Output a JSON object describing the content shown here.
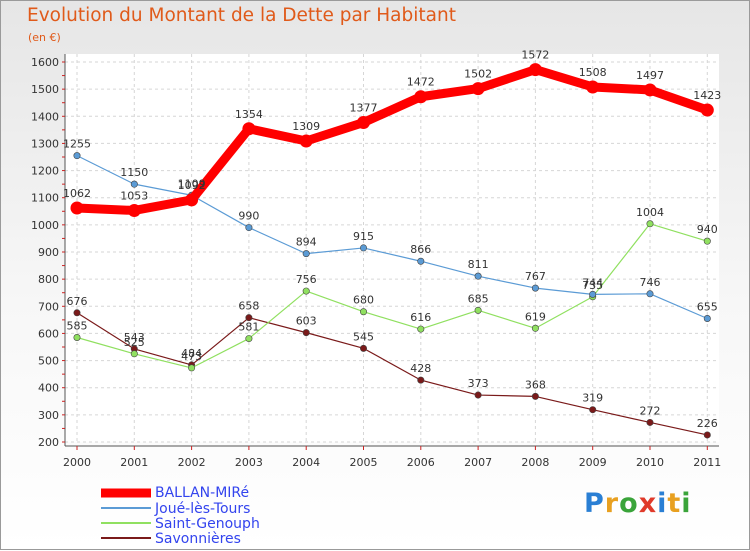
{
  "title": "Evolution du Montant de la Dette par Habitant",
  "unit": "(en €)",
  "logo": {
    "text": "Proxiti",
    "colors": [
      "#2a7fd4",
      "#e8a020",
      "#3aa43a",
      "#e03a2a",
      "#2a7fd4",
      "#e8a020",
      "#3aa43a"
    ]
  },
  "chart_data": {
    "type": "line",
    "title": "Evolution du Montant de la Dette par Habitant",
    "ylabel": "(en €)",
    "xlabel": "",
    "x": [
      "2000",
      "2001",
      "2002",
      "2003",
      "2004",
      "2005",
      "2006",
      "2007",
      "2008",
      "2009",
      "2010",
      "2011"
    ],
    "yticks": [
      200,
      300,
      400,
      500,
      600,
      700,
      800,
      900,
      1000,
      1100,
      1200,
      1300,
      1400,
      1500,
      1600
    ],
    "ylim": [
      200,
      1600
    ],
    "grid": true,
    "legend_position": "bottom-left",
    "series": [
      {
        "name": "BALLAN-MIRé",
        "color": "#ff0000",
        "values": [
          1062,
          1053,
          1092,
          1354,
          1309,
          1377,
          1472,
          1502,
          1572,
          1508,
          1497,
          1423
        ]
      },
      {
        "name": "Joué-lès-Tours",
        "color": "#5b9bd5",
        "values": [
          1255,
          1150,
          1109,
          990,
          894,
          915,
          866,
          811,
          767,
          744,
          746,
          655
        ]
      },
      {
        "name": "Saint-Genouph",
        "color": "#90e060",
        "values": [
          585,
          525,
          473,
          581,
          756,
          680,
          616,
          685,
          619,
          735,
          1004,
          940
        ]
      },
      {
        "name": "Savonnières",
        "color": "#7a1a1a",
        "values": [
          676,
          543,
          484,
          658,
          603,
          545,
          428,
          373,
          368,
          319,
          272,
          226
        ]
      }
    ]
  }
}
